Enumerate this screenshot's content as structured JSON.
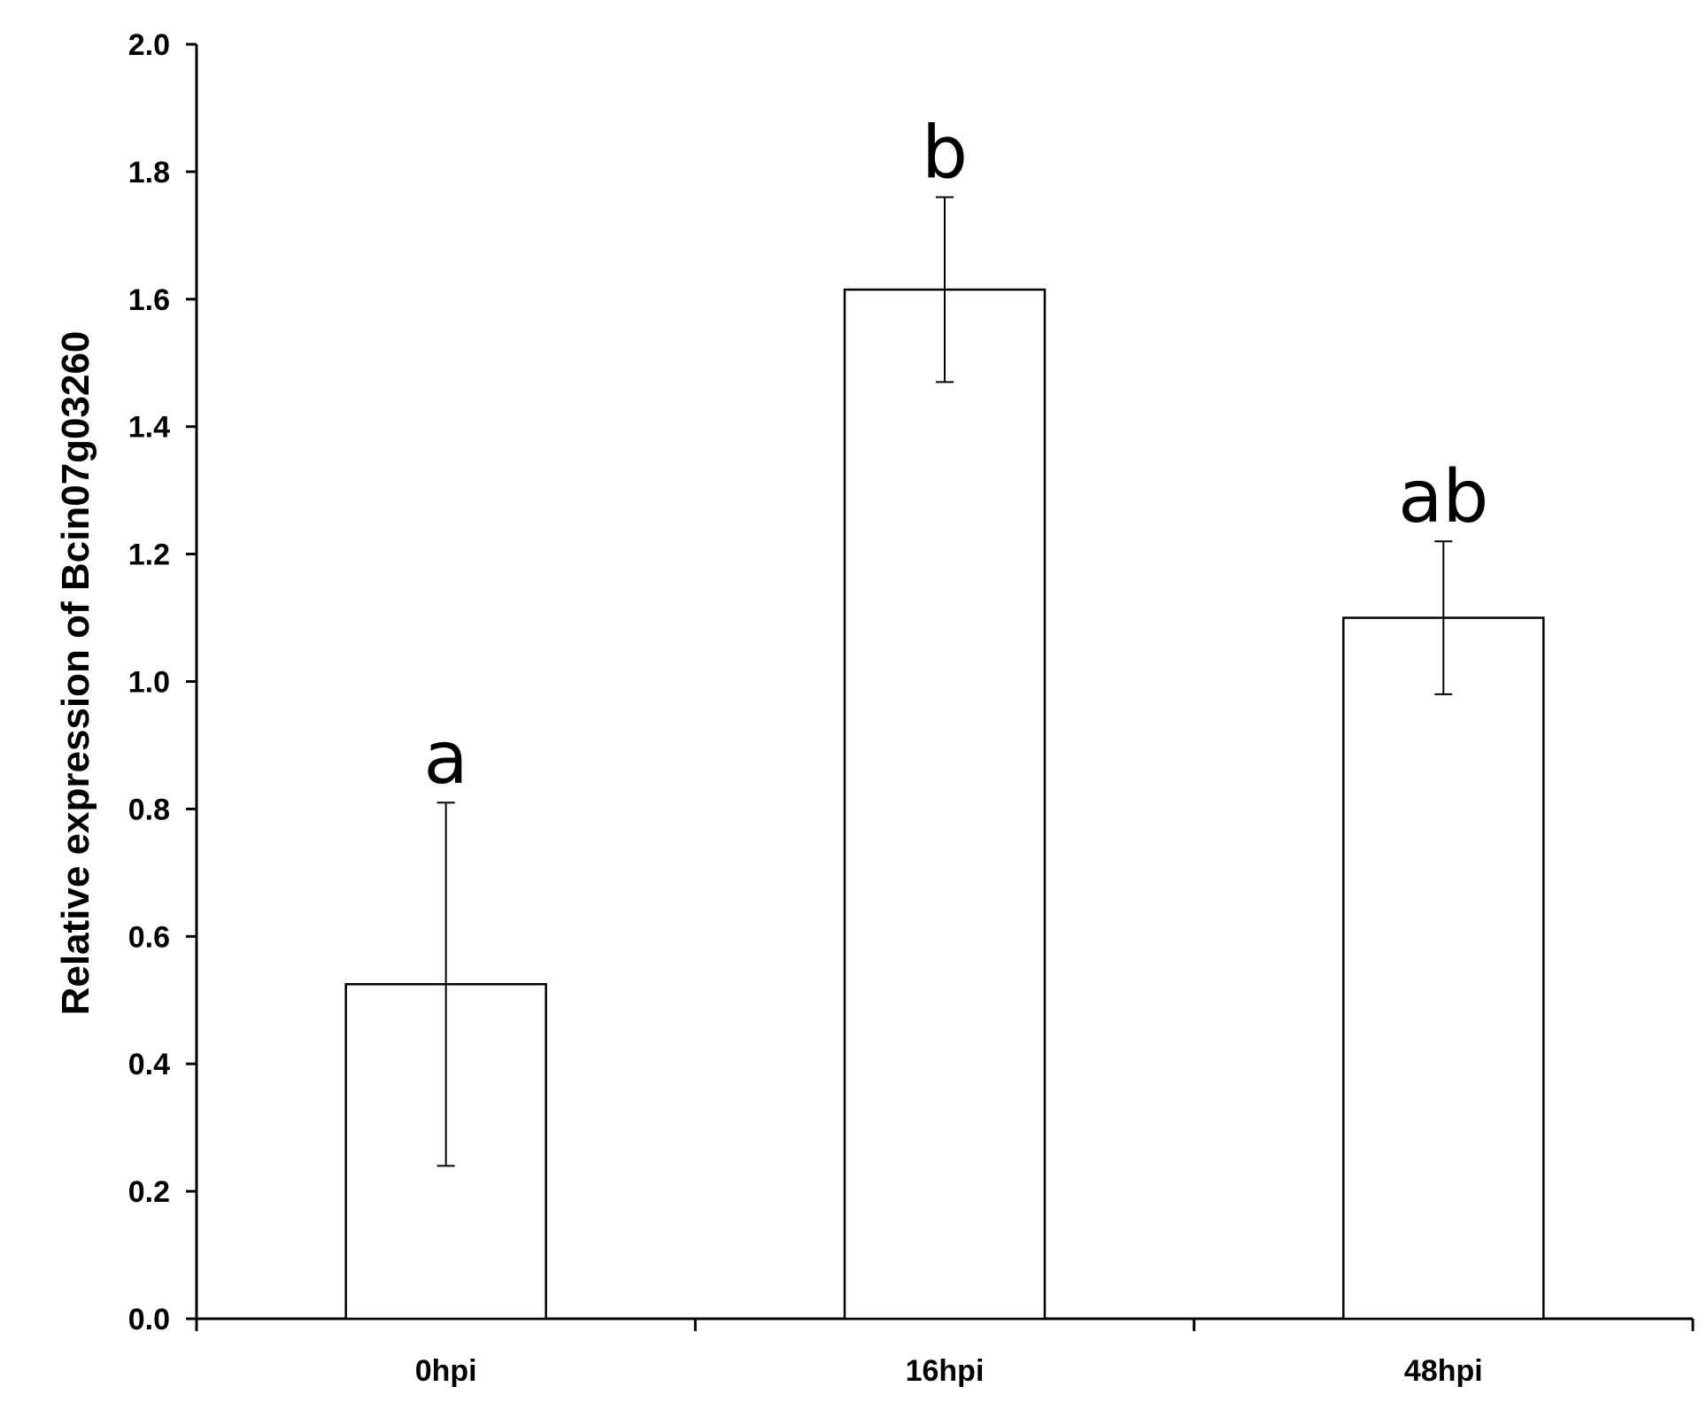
{
  "chart_data": {
    "type": "bar",
    "title": "",
    "xlabel": "",
    "ylabel": "Relative expression of Bcin07g03260",
    "categories": [
      "0hpi",
      "16hpi",
      "48hpi"
    ],
    "series": [
      {
        "values": [
          0.525,
          1.615,
          1.1
        ],
        "error": [
          0.285,
          0.145,
          0.12
        ]
      }
    ],
    "annotations": [
      "a",
      "b",
      "ab"
    ],
    "ylim": [
      0,
      2.0
    ],
    "yticks": [
      0.0,
      0.2,
      0.4,
      0.6,
      0.8,
      1.0,
      1.2,
      1.4,
      1.6,
      1.8,
      2.0
    ],
    "ytick_labels": [
      "0.0",
      "0.2",
      "0.4",
      "0.6",
      "0.8",
      "1.0",
      "1.2",
      "1.4",
      "1.6",
      "1.8",
      "2.0"
    ],
    "grid": false,
    "legend": "none",
    "colors": {
      "bar_fill": "#ffffff",
      "bar_stroke": "#000000",
      "axis": "#000000"
    }
  }
}
